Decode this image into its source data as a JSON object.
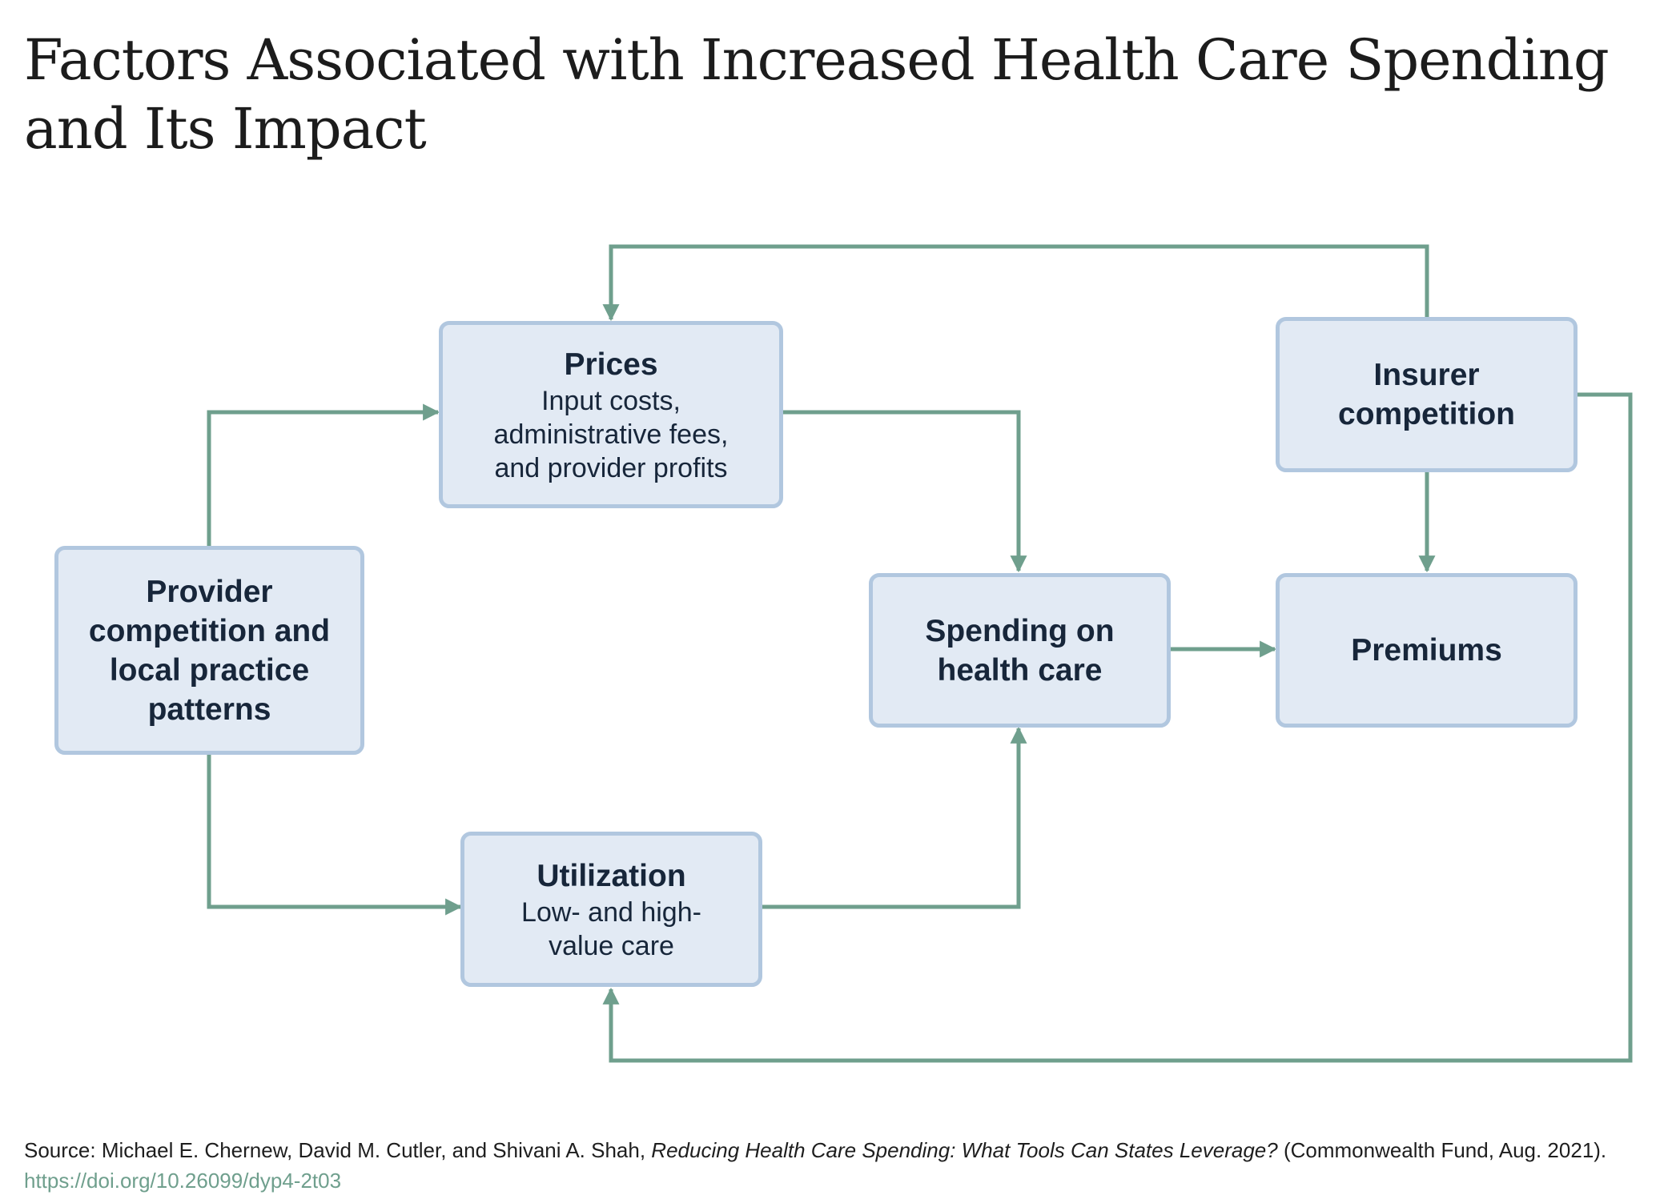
{
  "title": "Factors Associated with Increased Health Care Spending and Its Impact",
  "nodes": {
    "provider": {
      "title": "Provider competition and local practice patterns"
    },
    "prices": {
      "title": "Prices",
      "subtitle": "Input costs, administrative fees, and provider profits"
    },
    "utilization": {
      "title": "Utilization",
      "subtitle": "Low- and high-value care"
    },
    "spending": {
      "title": "Spending on health care"
    },
    "insurer": {
      "title": "Insurer competition"
    },
    "premiums": {
      "title": "Premiums"
    }
  },
  "edges": [
    {
      "from": "provider",
      "to": "prices"
    },
    {
      "from": "provider",
      "to": "utilization"
    },
    {
      "from": "prices",
      "to": "spending"
    },
    {
      "from": "utilization",
      "to": "spending"
    },
    {
      "from": "spending",
      "to": "premiums"
    },
    {
      "from": "insurer",
      "to": "premiums"
    },
    {
      "from": "insurer",
      "to": "prices"
    },
    {
      "from": "insurer",
      "to": "utilization"
    }
  ],
  "colors": {
    "arrow": "#6f9f8d",
    "box_fill": "#e2eaf4",
    "box_border": "#b1c7df",
    "text": "#17263a"
  },
  "source": {
    "prefix": "Source: Michael E. Chernew, David M. Cutler, and Shivani A. Shah, ",
    "publication": "Reducing Health Care Spending: What Tools Can States Leverage?",
    "suffix": " (Commonwealth Fund, Aug. 2021). ",
    "link": "https://doi.org/10.26099/dyp4-2t03"
  }
}
